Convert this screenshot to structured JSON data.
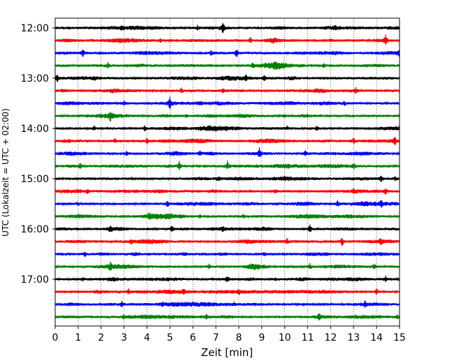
{
  "chart_data": {
    "type": "line",
    "title": "",
    "xlabel": "Zeit  [min]",
    "ylabel": "UTC (Lokalzeit = UTC + 02:00)",
    "xlim": [
      0,
      15
    ],
    "x_ticks": [
      0,
      1,
      2,
      3,
      4,
      5,
      6,
      7,
      8,
      9,
      10,
      11,
      12,
      13,
      14,
      15
    ],
    "x_tick_labels": [
      "0",
      "1",
      "2",
      "3",
      "4",
      "5",
      "6",
      "7",
      "8",
      "9",
      "10",
      "11",
      "12",
      "13",
      "14",
      "15"
    ],
    "y_tick_labels": [
      "12:00",
      "13:00",
      "14:00",
      "15:00",
      "16:00",
      "17:00"
    ],
    "grid": "vertical-dotted",
    "colors": [
      "#000000",
      "#ff0000",
      "#0000ff",
      "#008000"
    ],
    "traces": [
      {
        "start": "12:00",
        "color": "#000000",
        "events": [
          [
            7.3,
            1.0
          ],
          [
            2.9,
            0.35
          ],
          [
            6.2,
            0.35
          ],
          [
            12.2,
            0.3
          ]
        ]
      },
      {
        "start": "12:15",
        "color": "#ff0000",
        "events": [
          [
            14.4,
            1.0
          ],
          [
            8.5,
            0.45
          ],
          [
            4.6,
            0.3
          ],
          [
            12.0,
            0.3
          ]
        ]
      },
      {
        "start": "12:30",
        "color": "#0000ff",
        "events": [
          [
            1.2,
            0.7
          ],
          [
            7.9,
            0.75
          ],
          [
            15.0,
            0.6
          ],
          [
            6.8,
            0.35
          ]
        ]
      },
      {
        "start": "12:45",
        "color": "#008000",
        "events": [
          [
            2.3,
            0.5
          ],
          [
            8.6,
            0.35
          ],
          [
            11.7,
            0.3
          ]
        ]
      },
      {
        "start": "13:00",
        "color": "#000000",
        "events": [
          [
            0.1,
            0.8
          ],
          [
            9.1,
            0.6
          ],
          [
            8.3,
            0.45
          ],
          [
            1.7,
            0.3
          ]
        ]
      },
      {
        "start": "13:15",
        "color": "#ff0000",
        "events": [
          [
            5.5,
            0.45
          ],
          [
            13.1,
            0.4
          ],
          [
            7.3,
            0.3
          ]
        ]
      },
      {
        "start": "13:30",
        "color": "#0000ff",
        "events": [
          [
            5.0,
            1.0
          ],
          [
            6.3,
            0.5
          ],
          [
            3.0,
            0.4
          ],
          [
            12.6,
            0.4
          ]
        ]
      },
      {
        "start": "13:45",
        "color": "#008000",
        "events": [
          [
            2.4,
            0.8
          ],
          [
            5.7,
            0.35
          ],
          [
            10.0,
            0.3
          ]
        ]
      },
      {
        "start": "14:00",
        "color": "#000000",
        "events": [
          [
            3.9,
            0.45
          ],
          [
            1.7,
            0.35
          ],
          [
            11.4,
            0.4
          ],
          [
            10.1,
            0.3
          ]
        ]
      },
      {
        "start": "14:15",
        "color": "#ff0000",
        "events": [
          [
            14.8,
            0.8
          ],
          [
            4.0,
            0.6
          ],
          [
            2.6,
            0.5
          ],
          [
            13.0,
            0.5
          ]
        ]
      },
      {
        "start": "14:30",
        "color": "#0000ff",
        "events": [
          [
            8.9,
            0.85
          ],
          [
            10.9,
            0.7
          ],
          [
            6.3,
            0.5
          ],
          [
            3.1,
            0.35
          ]
        ]
      },
      {
        "start": "14:45",
        "color": "#008000",
        "events": [
          [
            7.5,
            0.9
          ],
          [
            5.4,
            0.8
          ],
          [
            1.1,
            0.6
          ],
          [
            13.0,
            0.5
          ]
        ]
      },
      {
        "start": "15:00",
        "color": "#000000",
        "events": [
          [
            14.2,
            0.6
          ],
          [
            7.1,
            0.35
          ],
          [
            10.0,
            0.3
          ],
          [
            14.8,
            0.35
          ]
        ]
      },
      {
        "start": "15:15",
        "color": "#ff0000",
        "events": [
          [
            14.4,
            0.55
          ],
          [
            1.4,
            0.35
          ],
          [
            13.0,
            0.3
          ],
          [
            9.6,
            0.3
          ]
        ]
      },
      {
        "start": "15:30",
        "color": "#0000ff",
        "events": [
          [
            12.3,
            0.6
          ],
          [
            4.9,
            0.5
          ],
          [
            14.2,
            0.6
          ],
          [
            1.0,
            0.3
          ]
        ]
      },
      {
        "start": "15:45",
        "color": "#008000",
        "events": [
          [
            4.1,
            0.4
          ],
          [
            6.3,
            0.3
          ],
          [
            8.2,
            0.35
          ],
          [
            1.0,
            0.3
          ]
        ]
      },
      {
        "start": "16:00",
        "color": "#000000",
        "events": [
          [
            2.4,
            0.75
          ],
          [
            5.1,
            0.65
          ],
          [
            11.1,
            0.75
          ],
          [
            7.3,
            0.4
          ]
        ]
      },
      {
        "start": "16:15",
        "color": "#ff0000",
        "events": [
          [
            12.5,
            0.95
          ],
          [
            14.2,
            0.6
          ],
          [
            3.3,
            0.4
          ],
          [
            10.1,
            0.45
          ]
        ]
      },
      {
        "start": "16:30",
        "color": "#0000ff",
        "events": [
          [
            1.3,
            0.4
          ],
          [
            9.1,
            0.4
          ],
          [
            5.6,
            0.3
          ]
        ]
      },
      {
        "start": "16:45",
        "color": "#008000",
        "events": [
          [
            2.4,
            0.6
          ],
          [
            11.1,
            0.55
          ],
          [
            13.9,
            0.55
          ],
          [
            6.7,
            0.35
          ]
        ]
      },
      {
        "start": "17:00",
        "color": "#000000",
        "events": [
          [
            7.5,
            0.7
          ],
          [
            1.2,
            0.35
          ],
          [
            14.4,
            0.5
          ],
          [
            9.6,
            0.3
          ]
        ]
      },
      {
        "start": "17:15",
        "color": "#ff0000",
        "events": [
          [
            3.2,
            0.45
          ],
          [
            8.0,
            0.4
          ],
          [
            14.0,
            0.55
          ],
          [
            5.6,
            0.3
          ]
        ]
      },
      {
        "start": "17:30",
        "color": "#0000ff",
        "events": [
          [
            2.9,
            0.45
          ],
          [
            13.5,
            0.5
          ],
          [
            7.8,
            0.3
          ],
          [
            4.7,
            0.3
          ]
        ]
      },
      {
        "start": "17:45",
        "color": "#008000",
        "events": [
          [
            11.5,
            0.5
          ],
          [
            14.9,
            0.4
          ],
          [
            3.0,
            0.3
          ],
          [
            6.6,
            0.3
          ]
        ]
      }
    ]
  }
}
